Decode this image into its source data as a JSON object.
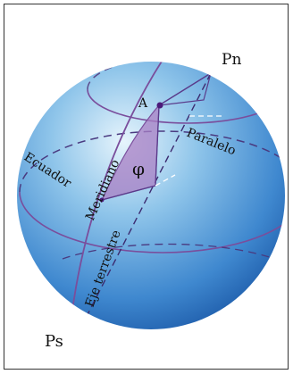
{
  "labels": {
    "north_pole": "Pn",
    "south_pole": "Ps",
    "point": "A",
    "parallel": "Paralelo",
    "equator": "Ecuador",
    "meridian": "Meridiano",
    "axis": "Eje terrestre",
    "latitude_symbol": "φ"
  },
  "colors": {
    "sphere_light": "#dff0fb",
    "sphere_mid": "#6aaee0",
    "sphere_dark": "#1e63b4",
    "line": "#7a4e9c",
    "dashed": "#5a4a8c",
    "angle_fill": "#a87fc4",
    "point": "#4b1a7a"
  }
}
